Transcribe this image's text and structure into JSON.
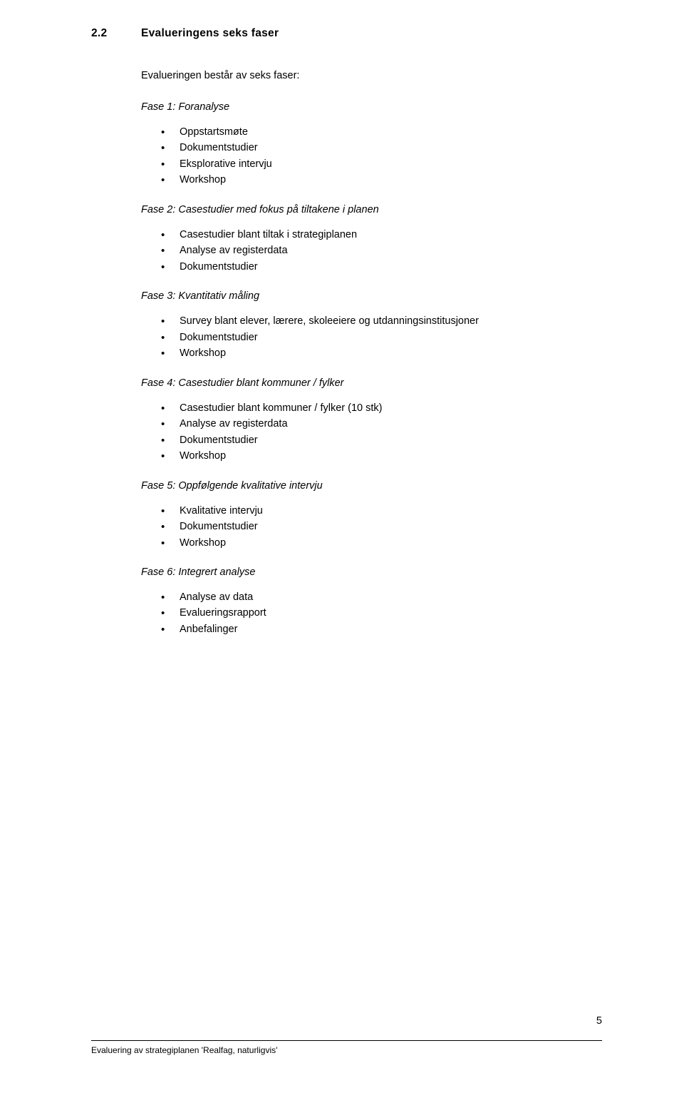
{
  "section": {
    "number": "2.2",
    "title": "Evalueringens seks faser"
  },
  "intro": "Evalueringen består av seks faser:",
  "phases": [
    {
      "title": "Fase 1: Foranalyse",
      "bullet_style": "round",
      "items": [
        "Oppstartsmøte",
        "Dokumentstudier",
        "Eksplorative intervju",
        "Workshop"
      ]
    },
    {
      "title": "Fase 2: Casestudier med fokus på tiltakene i planen",
      "bullet_style": "dot",
      "items": [
        "Casestudier blant tiltak i strategiplanen",
        "Analyse av registerdata",
        "Dokumentstudier"
      ]
    },
    {
      "title": "Fase 3: Kvantitativ måling",
      "bullet_style": "dot",
      "items": [
        "Survey blant elever, lærere, skoleeiere og utdanningsinstitusjoner",
        "Dokumentstudier",
        "Workshop"
      ]
    },
    {
      "title": "Fase 4: Casestudier blant kommuner / fylker",
      "bullet_style": "dot",
      "items": [
        "Casestudier blant kommuner / fylker (10 stk)",
        "Analyse av registerdata",
        "Dokumentstudier",
        "Workshop"
      ]
    },
    {
      "title": "Fase 5: Oppfølgende kvalitative intervju",
      "bullet_style": "dot",
      "items": [
        "Kvalitative intervju",
        "Dokumentstudier",
        "Workshop"
      ]
    },
    {
      "title": "Fase 6: Integrert analyse",
      "bullet_style": "dot",
      "items": [
        "Analyse av data",
        "Evalueringsrapport",
        "Anbefalinger"
      ]
    }
  ],
  "footer": "Evaluering av strategiplanen 'Realfag, naturligvis'",
  "page_number": "5"
}
